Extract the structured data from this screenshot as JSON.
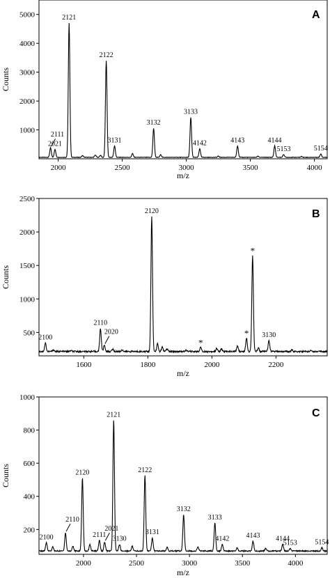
{
  "figure": {
    "chart_data": [
      {
        "panel": "A",
        "type": "line",
        "xlabel": "m/z",
        "ylabel": "Counts",
        "xlim": [
          1850,
          4100
        ],
        "ylim": [
          0,
          5500
        ],
        "xticks": [
          2000,
          2500,
          3000,
          3500,
          4000
        ],
        "yticks": [
          1000,
          2000,
          3000,
          4000,
          5000
        ],
        "baseline": 50,
        "peaks": [
          {
            "label": "2111",
            "x": 1940,
            "y": 380,
            "arrow": true
          },
          {
            "label": "2021",
            "x": 1975,
            "y": 330
          },
          {
            "label": "2121",
            "x": 2085,
            "y": 4700
          },
          {
            "label": "2122",
            "x": 2375,
            "y": 3400
          },
          {
            "label": "3131",
            "x": 2440,
            "y": 450
          },
          {
            "label": "3132",
            "x": 2745,
            "y": 1060
          },
          {
            "label": "3133",
            "x": 3035,
            "y": 1430
          },
          {
            "label": "4142",
            "x": 3105,
            "y": 350
          },
          {
            "label": "4143",
            "x": 3400,
            "y": 450
          },
          {
            "label": "4144",
            "x": 3690,
            "y": 450
          },
          {
            "label": "5153",
            "x": 3760,
            "y": 150
          },
          {
            "label": "5154",
            "x": 4050,
            "y": 170
          }
        ],
        "minor_peaks": [
          [
            2190,
            110
          ],
          [
            2290,
            130
          ],
          [
            2330,
            120
          ],
          [
            2580,
            180
          ],
          [
            2800,
            140
          ],
          [
            3250,
            90
          ],
          [
            3560,
            90
          ],
          [
            3900,
            80
          ]
        ]
      },
      {
        "panel": "B",
        "type": "line",
        "xlabel": "m/z",
        "ylabel": "Counts",
        "xlim": [
          1460,
          2360
        ],
        "ylim": [
          150,
          2500
        ],
        "xticks": [
          1600,
          1800,
          2000,
          2200
        ],
        "yticks": [
          500,
          1000,
          1500,
          2000,
          2500
        ],
        "baseline": 215,
        "peaks": [
          {
            "label": "2100",
            "x": 1480,
            "y": 340
          },
          {
            "label": "2110",
            "x": 1652,
            "y": 560
          },
          {
            "label": "2020",
            "x": 1664,
            "y": 310,
            "arrow": true
          },
          {
            "label": "2120",
            "x": 1812,
            "y": 2230
          },
          {
            "label": "*",
            "x": 1965,
            "y": 280
          },
          {
            "label": "*",
            "x": 2108,
            "y": 420
          },
          {
            "label": "*",
            "x": 2127,
            "y": 1650
          },
          {
            "label": "3130",
            "x": 2178,
            "y": 380
          }
        ],
        "minor_peaks": [
          [
            1505,
            240
          ],
          [
            1560,
            230
          ],
          [
            1690,
            250
          ],
          [
            1720,
            240
          ],
          [
            1830,
            330
          ],
          [
            1845,
            280
          ],
          [
            1860,
            255
          ],
          [
            1920,
            235
          ],
          [
            2015,
            260
          ],
          [
            2030,
            255
          ],
          [
            2080,
            300
          ],
          [
            2145,
            270
          ],
          [
            2250,
            240
          ],
          [
            2310,
            235
          ]
        ]
      },
      {
        "panel": "C",
        "type": "line",
        "xlabel": "m/z",
        "ylabel": "Counts",
        "xlim": [
          1580,
          4300
        ],
        "ylim": [
          50,
          1000
        ],
        "xticks": [
          2000,
          2500,
          3000,
          3500,
          4000
        ],
        "yticks": [
          200,
          400,
          600,
          800,
          1000
        ],
        "baseline": 70,
        "peaks": [
          {
            "label": "2100",
            "x": 1650,
            "y": 120
          },
          {
            "label": "2110",
            "x": 1830,
            "y": 180,
            "arrow": true
          },
          {
            "label": "2120",
            "x": 1990,
            "y": 510
          },
          {
            "label": "2111",
            "x": 2150,
            "y": 135
          },
          {
            "label": "2021",
            "x": 2200,
            "y": 125,
            "arrow": true
          },
          {
            "label": "2121",
            "x": 2285,
            "y": 860
          },
          {
            "label": "3130",
            "x": 2340,
            "y": 110
          },
          {
            "label": "2122",
            "x": 2580,
            "y": 525
          },
          {
            "label": "3131",
            "x": 2650,
            "y": 150
          },
          {
            "label": "3132",
            "x": 2945,
            "y": 290
          },
          {
            "label": "3133",
            "x": 3240,
            "y": 240
          },
          {
            "label": "4142",
            "x": 3310,
            "y": 110
          },
          {
            "label": "4143",
            "x": 3600,
            "y": 130
          },
          {
            "label": "4144",
            "x": 3880,
            "y": 110
          },
          {
            "label": "5153",
            "x": 3950,
            "y": 85
          },
          {
            "label": "5154",
            "x": 4250,
            "y": 90
          }
        ],
        "minor_peaks": [
          [
            1710,
            95
          ],
          [
            1900,
            100
          ],
          [
            2060,
            110
          ],
          [
            2460,
            100
          ],
          [
            2790,
            95
          ],
          [
            3080,
            95
          ],
          [
            3450,
            90
          ],
          [
            3720,
            85
          ]
        ]
      }
    ]
  }
}
